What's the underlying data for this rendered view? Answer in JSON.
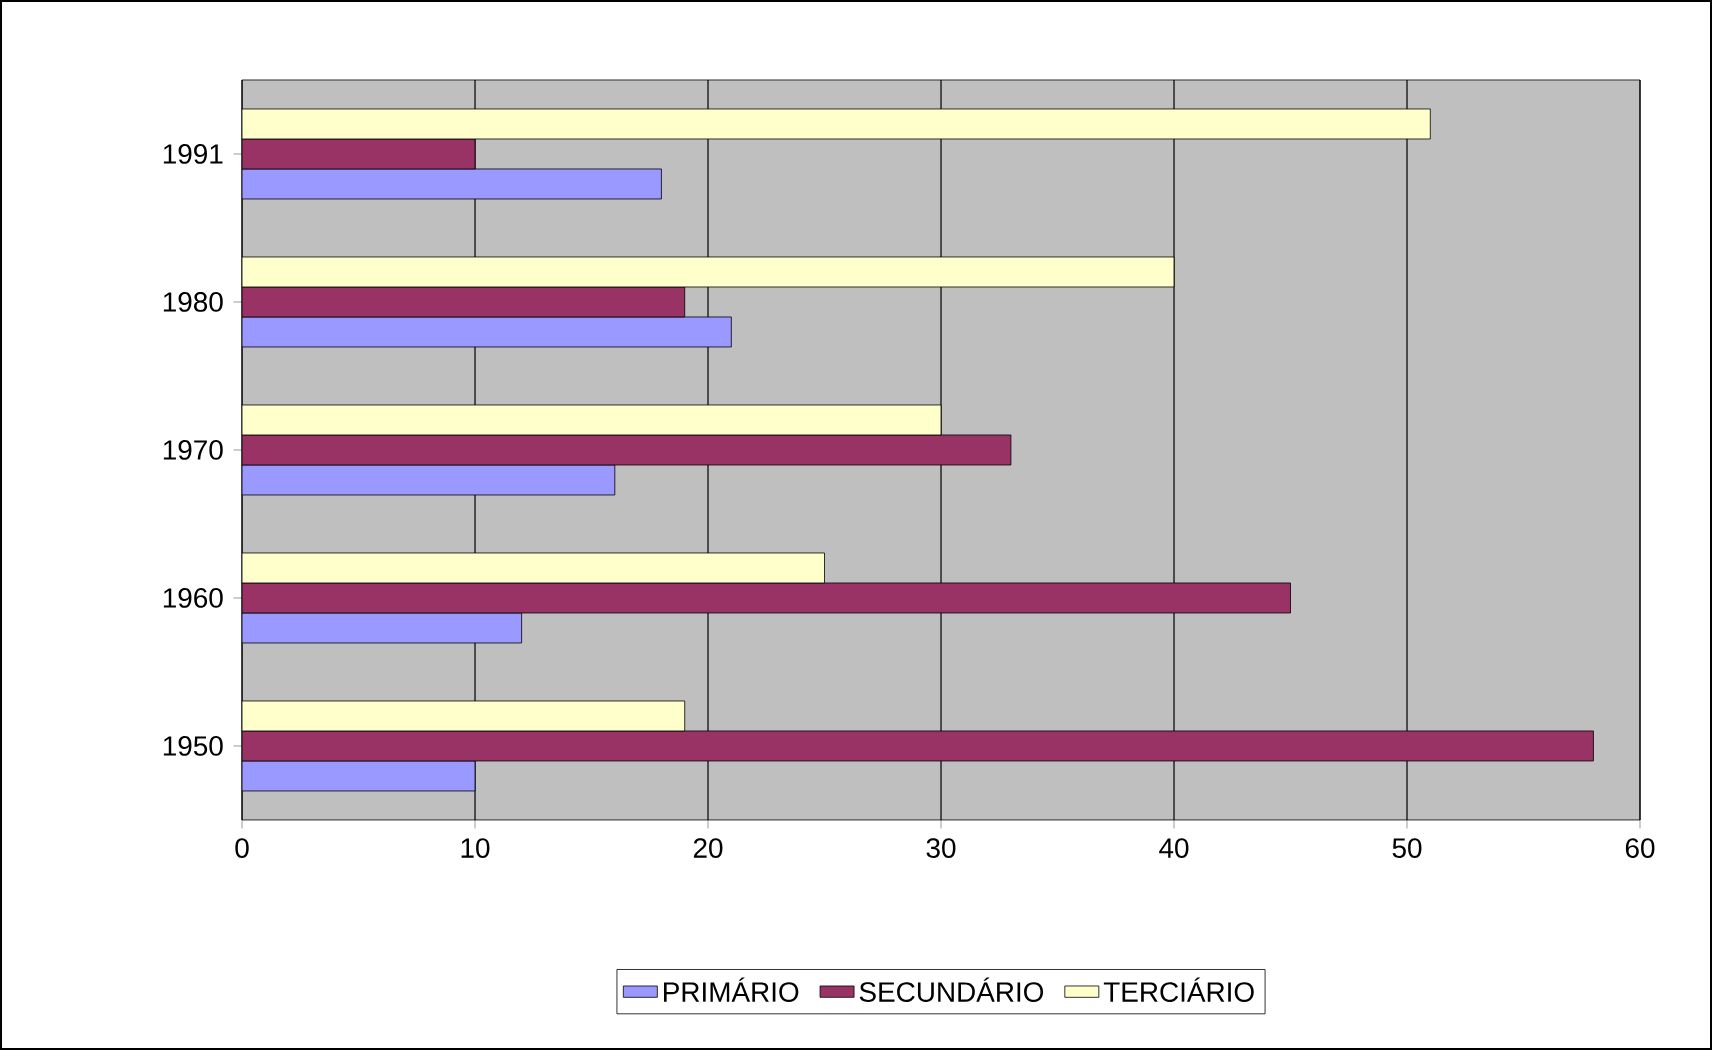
{
  "chart_data": {
    "type": "bar",
    "orientation": "horizontal",
    "categories": [
      "1991",
      "1980",
      "1970",
      "1960",
      "1950"
    ],
    "series": [
      {
        "name": "PRIMÁRIO",
        "color": "#9999ff",
        "values": [
          18,
          21,
          16,
          12,
          10
        ]
      },
      {
        "name": "SECUNDÁRIO",
        "color": "#993366",
        "values": [
          10,
          19,
          33,
          45,
          58
        ]
      },
      {
        "name": "TERCIÁRIO",
        "color": "#ffffcc",
        "values": [
          51,
          40,
          30,
          25,
          19
        ]
      }
    ],
    "xlim": [
      0,
      60
    ],
    "xticks": [
      0,
      10,
      20,
      30,
      40,
      50,
      60
    ],
    "grid": "x",
    "legend": "bottom"
  }
}
